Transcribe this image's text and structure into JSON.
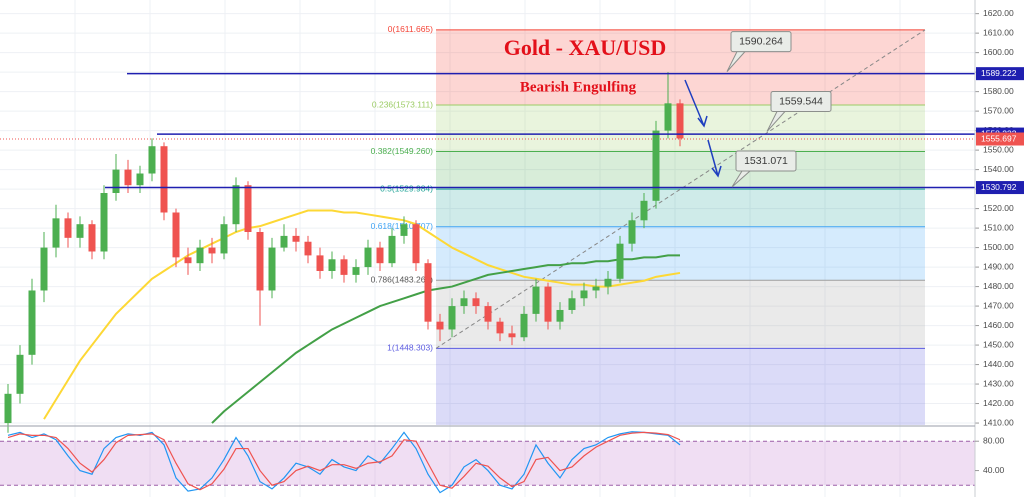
{
  "chart_data": {
    "type": "candlestick",
    "title": "Gold - XAU/USD",
    "annotation": "Bearish Engulfing",
    "open": [
      1410,
      1425,
      1445,
      1478,
      1500,
      1515,
      1505,
      1512,
      1498,
      1528,
      1540,
      1532,
      1538,
      1552,
      1518,
      1495,
      1492,
      1500,
      1497,
      1512,
      1532,
      1508,
      1478,
      1500,
      1506,
      1503,
      1496,
      1488,
      1494,
      1486,
      1490,
      1500,
      1492,
      1506,
      1512,
      1492,
      1462,
      1458,
      1470,
      1474,
      1470,
      1462,
      1456,
      1454,
      1466,
      1480,
      1462,
      1468,
      1474,
      1478,
      1480,
      1484,
      1502,
      1514,
      1524,
      1560,
      1574
    ],
    "high": [
      1430,
      1450,
      1484,
      1508,
      1522,
      1518,
      1516,
      1514,
      1532,
      1548,
      1545,
      1542,
      1556,
      1554,
      1520,
      1500,
      1504,
      1505,
      1516,
      1536,
      1534,
      1510,
      1505,
      1512,
      1510,
      1506,
      1500,
      1498,
      1496,
      1494,
      1504,
      1503,
      1510,
      1516,
      1514,
      1494,
      1466,
      1474,
      1478,
      1477,
      1472,
      1464,
      1460,
      1470,
      1484,
      1482,
      1472,
      1478,
      1482,
      1484,
      1488,
      1506,
      1518,
      1528,
      1565,
      1590,
      1576
    ],
    "low": [
      1405,
      1420,
      1440,
      1472,
      1495,
      1500,
      1500,
      1494,
      1494,
      1524,
      1528,
      1528,
      1534,
      1514,
      1490,
      1486,
      1488,
      1492,
      1494,
      1508,
      1504,
      1460,
      1474,
      1498,
      1498,
      1492,
      1484,
      1484,
      1482,
      1482,
      1486,
      1488,
      1490,
      1502,
      1488,
      1458,
      1452,
      1454,
      1466,
      1466,
      1458,
      1452,
      1450,
      1452,
      1462,
      1458,
      1458,
      1466,
      1470,
      1474,
      1476,
      1482,
      1498,
      1510,
      1520,
      1556,
      1552
    ],
    "close": [
      1425,
      1445,
      1478,
      1500,
      1515,
      1505,
      1512,
      1498,
      1528,
      1540,
      1532,
      1538,
      1552,
      1518,
      1495,
      1492,
      1500,
      1497,
      1512,
      1532,
      1508,
      1478,
      1500,
      1506,
      1503,
      1496,
      1488,
      1494,
      1486,
      1490,
      1500,
      1492,
      1506,
      1512,
      1492,
      1462,
      1458,
      1470,
      1474,
      1470,
      1462,
      1456,
      1454,
      1466,
      1480,
      1462,
      1468,
      1474,
      1478,
      1480,
      1484,
      1502,
      1514,
      1524,
      1560,
      1574,
      1556
    ],
    "up_color": "#4caf50",
    "down_color": "#ef5350",
    "ylim": [
      1409,
      1627
    ],
    "yticks": [
      {
        "value": 1410,
        "label": "1410.00"
      },
      {
        "value": 1420,
        "label": "1420.00"
      },
      {
        "value": 1430,
        "label": "1430.00"
      },
      {
        "value": 1440,
        "label": "1440.00"
      },
      {
        "value": 1450,
        "label": "1450.00"
      },
      {
        "value": 1460,
        "label": "1460.00"
      },
      {
        "value": 1470,
        "label": "1470.00"
      },
      {
        "value": 1480,
        "label": "1480.00"
      },
      {
        "value": 1490,
        "label": "1490.00"
      },
      {
        "value": 1500,
        "label": "1500.00"
      },
      {
        "value": 1510,
        "label": "1510.00"
      },
      {
        "value": 1520,
        "label": "1520.00"
      },
      {
        "value": 1530,
        "label": "1530.00"
      },
      {
        "value": 1540,
        "label": "1540.00"
      },
      {
        "value": 1550,
        "label": "1550.00"
      },
      {
        "value": 1560,
        "label": "1560.00"
      },
      {
        "value": 1570,
        "label": "1570.00"
      },
      {
        "value": 1580,
        "label": "1580.00"
      },
      {
        "value": 1590,
        "label": "1590.00"
      },
      {
        "value": 1600,
        "label": "1600.00"
      },
      {
        "value": 1610,
        "label": "1610.00"
      },
      {
        "value": 1620,
        "label": "1620.00"
      }
    ],
    "grid": true,
    "moving_averages": [
      {
        "color": "#fdd835",
        "values": [
          null,
          null,
          null,
          1412,
          1422,
          1432,
          1442,
          1450,
          1458,
          1466,
          1472,
          1478,
          1484,
          1488,
          1492,
          1496,
          1499,
          1502,
          1505,
          1508,
          1510,
          1511,
          1513,
          1515,
          1517,
          1519,
          1519,
          1519,
          1518,
          1518,
          1517,
          1516,
          1515,
          1514,
          1512,
          1508,
          1504,
          1500,
          1497,
          1494,
          1491,
          1489,
          1487,
          1485,
          1484,
          1483,
          1482,
          1481,
          1481,
          1480,
          1480,
          1481,
          1482,
          1483,
          1485,
          1486,
          1487
        ]
      },
      {
        "color": "#43a047",
        "values": [
          null,
          null,
          null,
          null,
          null,
          null,
          null,
          null,
          null,
          null,
          null,
          null,
          null,
          null,
          null,
          null,
          null,
          1410,
          1416,
          1421,
          1426,
          1431,
          1436,
          1441,
          1446,
          1450,
          1454,
          1458,
          1461,
          1464,
          1467,
          1470,
          1472,
          1474,
          1476,
          1478,
          1479,
          1480,
          1482,
          1484,
          1486,
          1487,
          1488,
          1489,
          1490,
          1491,
          1491,
          1492,
          1492,
          1493,
          1493,
          1494,
          1494,
          1495,
          1495,
          1496,
          1496
        ]
      }
    ],
    "levels": [
      {
        "value": 1589.222,
        "color": "#1f1fb0"
      },
      {
        "value": 1558.232,
        "color": "#1f1fb0"
      },
      {
        "value": 1530.792,
        "color": "#1f1fb0"
      }
    ],
    "current_price": {
      "value": 1555.697,
      "color": "#ef5350"
    },
    "callouts": [
      1590.264,
      1559.544,
      1531.071
    ],
    "fibonacci": [
      {
        "label": "0(1611.665)",
        "value": 1611.665,
        "color": "#f44336"
      },
      {
        "label": "0.236(1573.111)",
        "value": 1573.111,
        "color": "#9ccc65"
      },
      {
        "label": "0.382(1549.260)",
        "value": 1549.26,
        "color": "#4caf50"
      },
      {
        "label": "0.5(1529.984)",
        "value": 1529.984,
        "color": "#26a69a"
      },
      {
        "label": "0.618(1510.707)",
        "value": 1510.707,
        "color": "#42a5f5"
      },
      {
        "label": "0.786(1483.262)",
        "value": 1483.262,
        "color": "#9e9e9e"
      },
      {
        "label": "1(1448.303)",
        "value": 1448.303,
        "color": "#5c5ce0"
      }
    ],
    "oscillator": {
      "type": "line",
      "ylim": [
        4,
        98
      ],
      "yticks": [
        {
          "value": 80,
          "label": "80.00"
        },
        {
          "value": 40,
          "label": "40.00"
        }
      ],
      "band": [
        20,
        80
      ],
      "band_color": "#ce93d8",
      "series": [
        {
          "color": "#2196f3",
          "values": [
            88,
            92,
            85,
            90,
            82,
            60,
            40,
            35,
            70,
            85,
            90,
            88,
            92,
            75,
            30,
            12,
            15,
            30,
            55,
            85,
            60,
            25,
            15,
            30,
            50,
            45,
            35,
            55,
            45,
            40,
            60,
            50,
            70,
            92,
            70,
            35,
            10,
            20,
            45,
            55,
            40,
            20,
            15,
            35,
            75,
            50,
            30,
            55,
            70,
            75,
            85,
            90,
            93,
            92,
            90,
            88,
            75
          ]
        },
        {
          "color": "#ef5350",
          "values": [
            85,
            90,
            88,
            88,
            85,
            70,
            50,
            38,
            55,
            78,
            88,
            89,
            90,
            82,
            50,
            22,
            14,
            22,
            42,
            70,
            70,
            40,
            20,
            25,
            40,
            46,
            40,
            48,
            48,
            43,
            50,
            52,
            60,
            82,
            80,
            50,
            20,
            16,
            32,
            50,
            46,
            30,
            18,
            25,
            55,
            58,
            40,
            45,
            60,
            72,
            80,
            88,
            91,
            92,
            91,
            89,
            82
          ]
        }
      ]
    }
  }
}
